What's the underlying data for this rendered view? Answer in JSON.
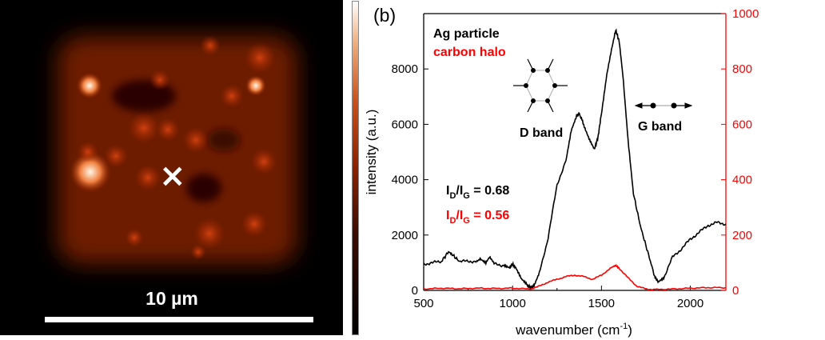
{
  "map_panel": {
    "scale_bar_label": "10 µm",
    "marker": "×",
    "colorbar_label": "intensity (a.u.)"
  },
  "chart_data": {
    "type": "line",
    "panel_label": "(b)",
    "xlabel": "wavenumber (cm",
    "xlabel_sup": "-1",
    "xlabel_close": ")",
    "xlim": [
      500,
      2200
    ],
    "ylim_left": [
      0,
      10000
    ],
    "ylim_right": [
      0,
      1000
    ],
    "xticks": [
      500,
      1000,
      1500,
      2000
    ],
    "yticks_left": [
      0,
      2000,
      4000,
      6000,
      8000
    ],
    "yticks_right": [
      0,
      200,
      400,
      600,
      800,
      1000
    ],
    "grid": false,
    "colors": {
      "ag": "#000000",
      "halo": "#ff0000"
    },
    "series": [
      {
        "name": "Ag particle",
        "axis": "left",
        "x": [
          500,
          550,
          600,
          640,
          660,
          700,
          750,
          800,
          820,
          850,
          870,
          900,
          950,
          980,
          1000,
          1020,
          1050,
          1080,
          1100,
          1120,
          1150,
          1200,
          1250,
          1300,
          1330,
          1360,
          1375,
          1400,
          1430,
          1460,
          1480,
          1500,
          1530,
          1560,
          1580,
          1600,
          1620,
          1650,
          1680,
          1720,
          1760,
          1800,
          1820,
          1850,
          1900,
          1950,
          2000,
          2050,
          2100,
          2150,
          2200
        ],
        "y": [
          950,
          1000,
          1050,
          1400,
          1300,
          1050,
          1050,
          1050,
          1150,
          1000,
          1200,
          950,
          900,
          800,
          950,
          800,
          400,
          200,
          100,
          150,
          600,
          1900,
          3800,
          4700,
          5800,
          6300,
          6400,
          6000,
          5500,
          5100,
          5500,
          6400,
          7800,
          8800,
          9400,
          9000,
          7800,
          5400,
          3500,
          2300,
          1400,
          500,
          300,
          450,
          1200,
          1500,
          1850,
          2100,
          2350,
          2450,
          2400
        ]
      },
      {
        "name": "carbon halo",
        "axis": "right",
        "x": [
          500,
          600,
          700,
          800,
          900,
          1000,
          1100,
          1150,
          1200,
          1250,
          1300,
          1350,
          1400,
          1450,
          1500,
          1550,
          1580,
          1600,
          1650,
          1700,
          1750,
          1800,
          1900,
          2000,
          2100,
          2200
        ],
        "y": [
          5,
          8,
          6,
          8,
          7,
          8,
          5,
          15,
          30,
          40,
          50,
          55,
          50,
          40,
          55,
          80,
          90,
          80,
          45,
          15,
          5,
          3,
          5,
          8,
          10,
          10
        ]
      }
    ],
    "annotations": {
      "legend_ag": "Ag particle",
      "legend_halo": "carbon halo",
      "d_band": "D band",
      "g_band": "G band",
      "ratio_ag": {
        "I": "I",
        "D": "D",
        "slash": "/I",
        "G": "G",
        "value": " = 0.68"
      },
      "ratio_halo": {
        "I": "I",
        "D": "D",
        "slash": "/I",
        "G": "G",
        "value": " = 0.56"
      }
    }
  }
}
